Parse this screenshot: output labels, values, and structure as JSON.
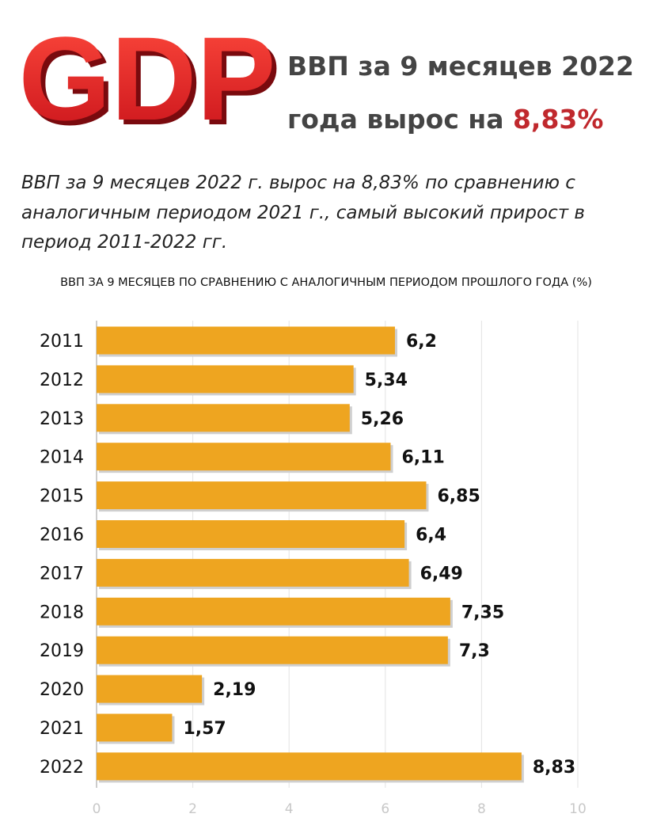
{
  "header": {
    "logo": "GDP",
    "title_line1": "ВВП за 9 месяцев 2022",
    "title_line2": "года вырос на ",
    "title_highlight": "8,83%",
    "description": [
      "ВВП за 9 месяцев 2022 г. вырос  на 8,83% по сравнению с",
      "аналогичным периодом 2021 г., самый высокий прирост в",
      "период 2011-2022 гг."
    ]
  },
  "chart_data": {
    "type": "bar",
    "orientation": "horizontal",
    "title": "ВВП ЗА 9 МЕСЯЦЕВ ПО СРАВНЕНИЮ С АНАЛОГИЧНЫМ ПЕРИОДОМ ПРОШЛОГО ГОДА (%)",
    "categories": [
      "2011",
      "2012",
      "2013",
      "2014",
      "2015",
      "2016",
      "2017",
      "2018",
      "2019",
      "2020",
      "2021",
      "2022"
    ],
    "values": [
      6.2,
      5.34,
      5.26,
      6.11,
      6.85,
      6.4,
      6.49,
      7.35,
      7.3,
      2.19,
      1.57,
      8.83
    ],
    "value_labels": [
      "6,2",
      "5,34",
      "5,26",
      "6,11",
      "6,85",
      "6,4",
      "6,49",
      "7,35",
      "7,3",
      "2,19",
      "1,57",
      "8,83"
    ],
    "color": "#eea520",
    "xlim": [
      0,
      10
    ],
    "xticks": [
      0,
      2,
      4,
      6,
      8,
      10
    ],
    "grid": true
  }
}
